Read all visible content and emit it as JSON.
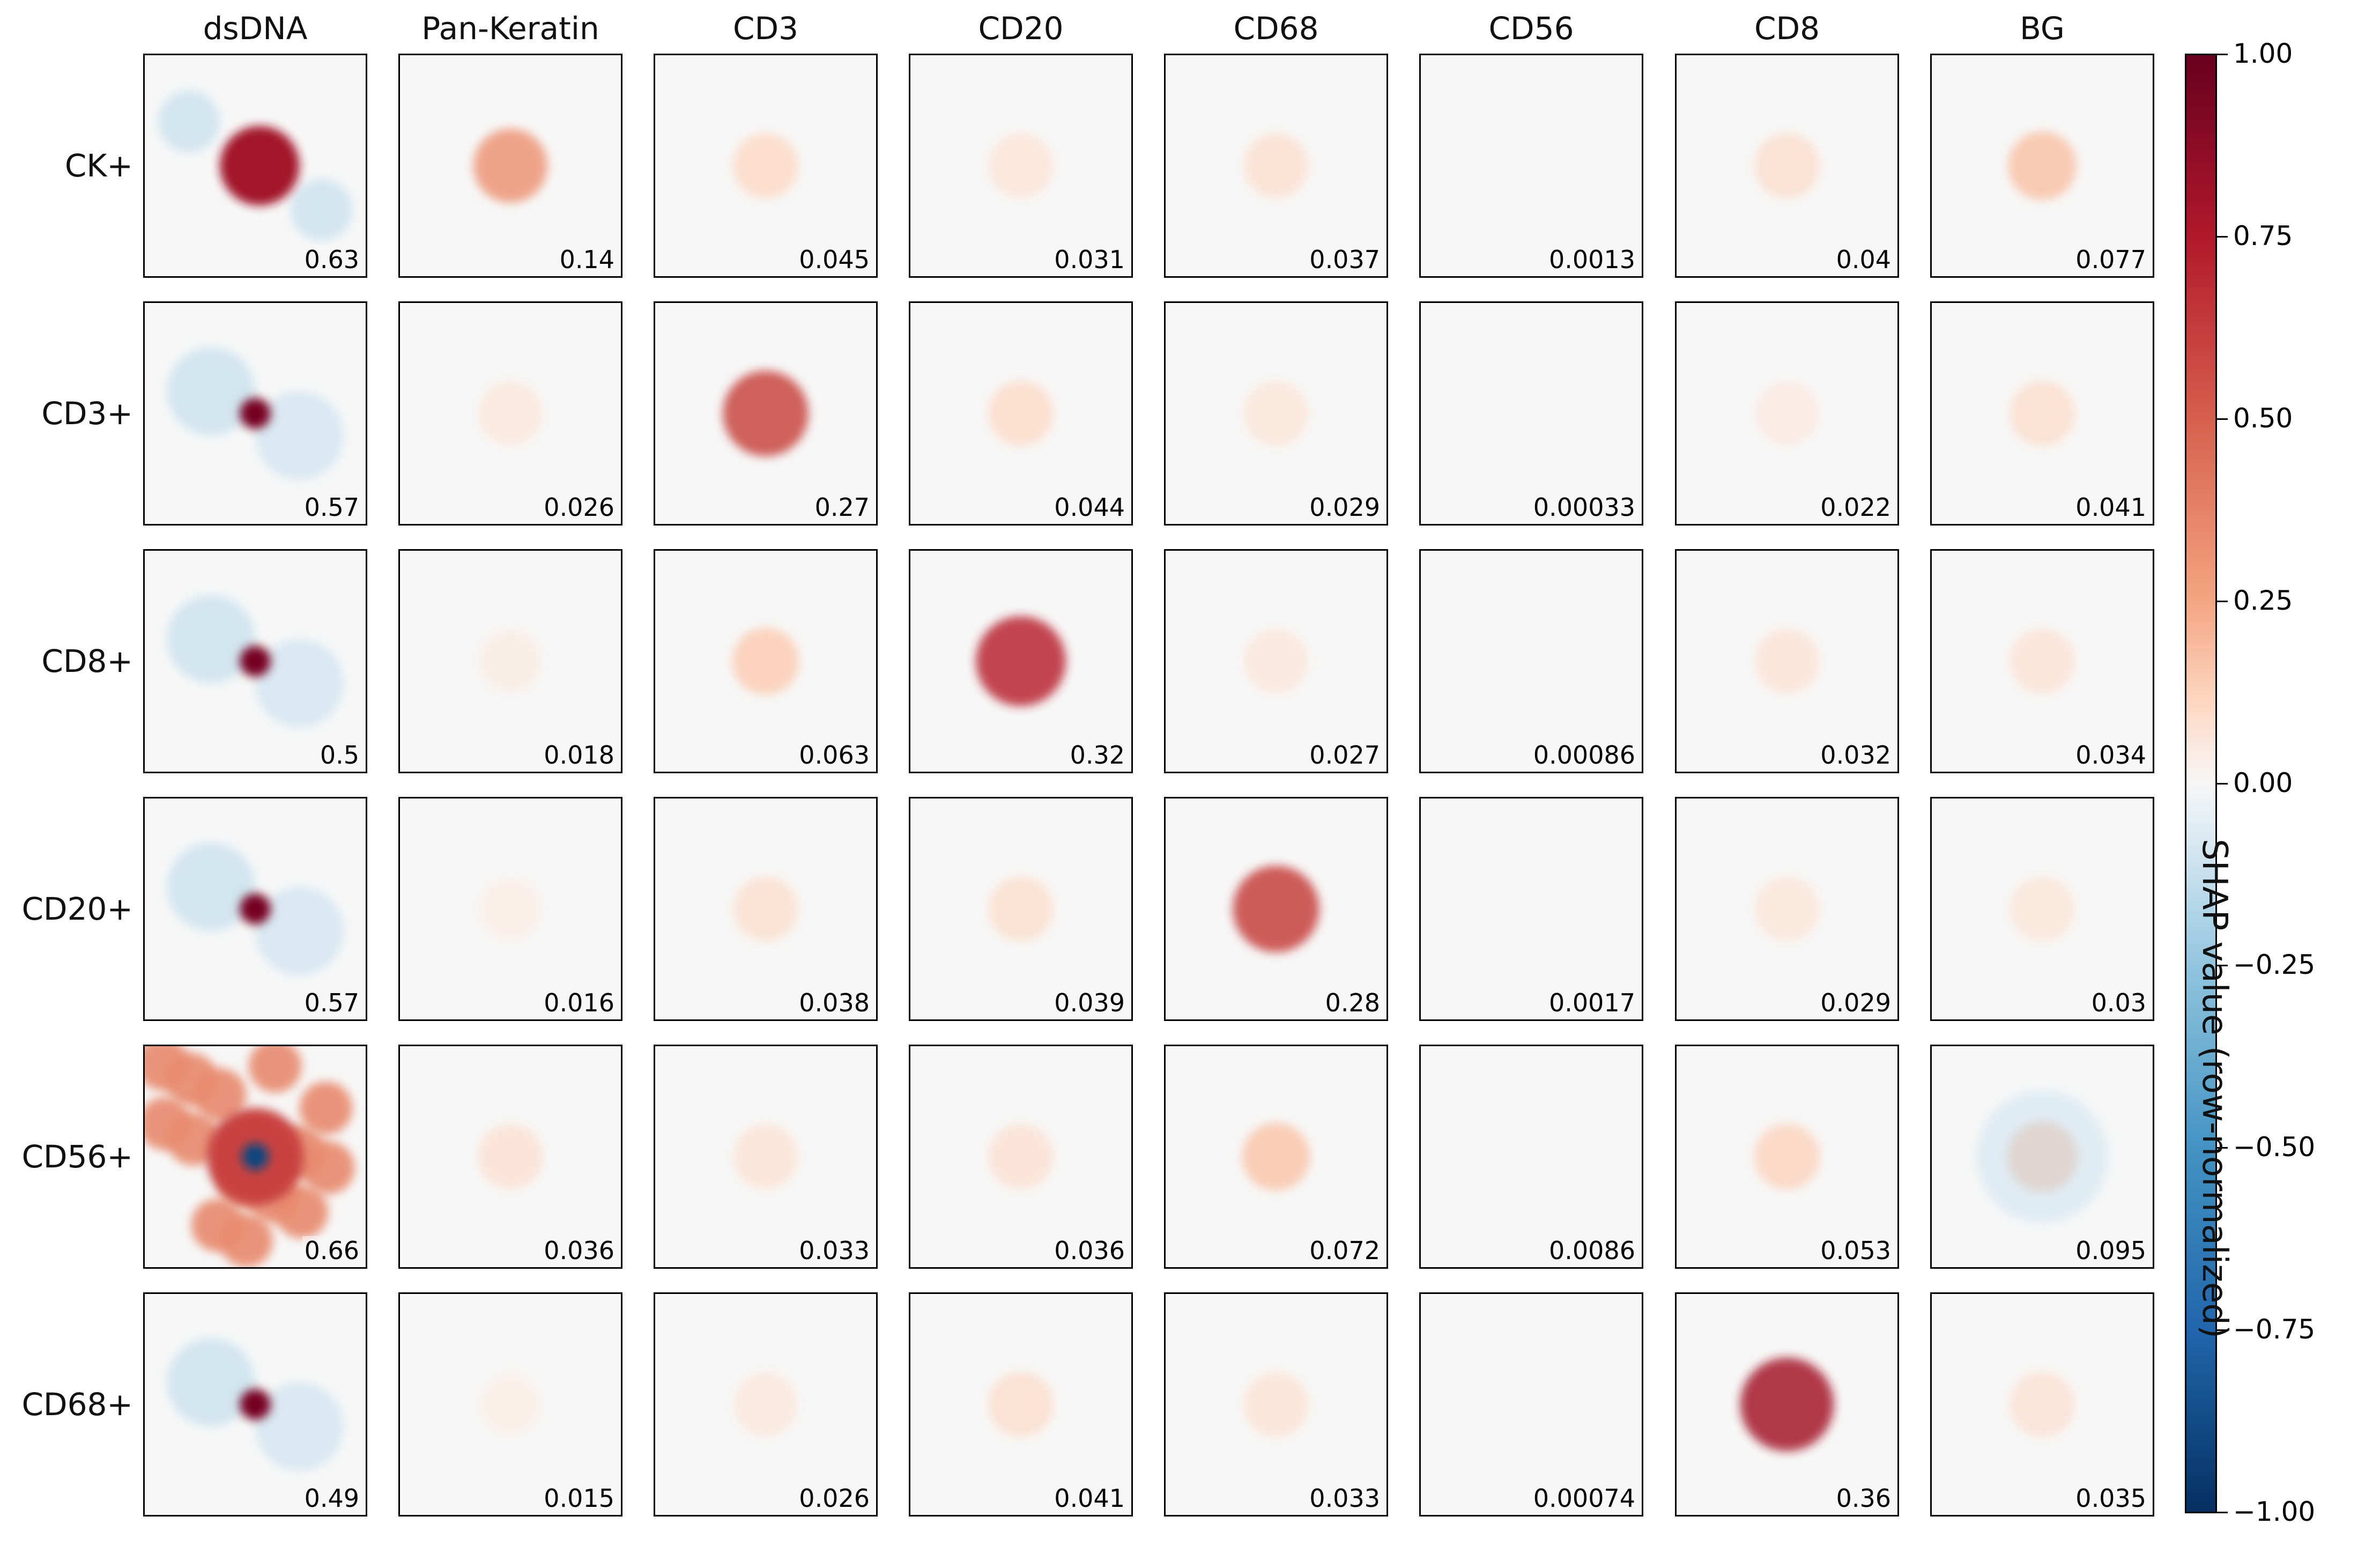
{
  "chart_data": {
    "type": "heatmap",
    "columns": [
      "dsDNA",
      "Pan-Keratin",
      "CD3",
      "CD20",
      "CD68",
      "CD56",
      "CD8",
      "BG"
    ],
    "rows": [
      "CK+",
      "CD3+",
      "CD8+",
      "CD20+",
      "CD56+",
      "CD68+"
    ],
    "values": [
      [
        "0.63",
        "0.14",
        "0.045",
        "0.031",
        "0.037",
        "0.0013",
        "0.04",
        "0.077"
      ],
      [
        "0.57",
        "0.026",
        "0.27",
        "0.044",
        "0.029",
        "0.00033",
        "0.022",
        "0.041"
      ],
      [
        "0.5",
        "0.018",
        "0.063",
        "0.32",
        "0.027",
        "0.00086",
        "0.032",
        "0.034"
      ],
      [
        "0.57",
        "0.016",
        "0.038",
        "0.039",
        "0.28",
        "0.0017",
        "0.029",
        "0.03"
      ],
      [
        "0.66",
        "0.036",
        "0.033",
        "0.036",
        "0.072",
        "0.0086",
        "0.053",
        "0.095"
      ],
      [
        "0.49",
        "0.015",
        "0.026",
        "0.041",
        "0.033",
        "0.00074",
        "0.36",
        "0.035"
      ]
    ],
    "colorbar": {
      "title": "SHAP value (row-normalized)",
      "range": [
        -1.0,
        1.0
      ],
      "ticks": [
        "1.00",
        "0.75",
        "0.50",
        "0.25",
        "0.00",
        "−0.25",
        "−0.50",
        "−0.75",
        "−1.00"
      ],
      "colormap": "RdBu_r"
    }
  }
}
